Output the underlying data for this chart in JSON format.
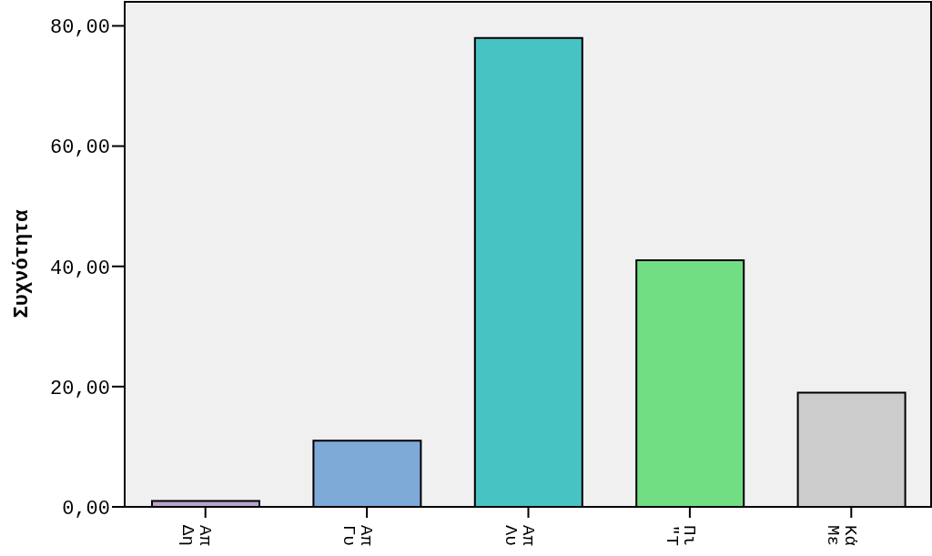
{
  "chart_data": {
    "type": "bar",
    "ylabel": "Συχνότητα",
    "categories": [
      "Απ\nΔη",
      "Απ\nΓυ",
      "Απ\nΛυ",
      "Πι\n\"Τ",
      "Κά\nΜε"
    ],
    "values": [
      1,
      11,
      78,
      41,
      19
    ],
    "colors": [
      "#b8a3cb",
      "#7eaad8",
      "#48c3c3",
      "#72de84",
      "#cccccc"
    ],
    "ylim": [
      0,
      84
    ],
    "yticks": [
      {
        "value": 0,
        "label": "0,00"
      },
      {
        "value": 20,
        "label": "20,00"
      },
      {
        "value": 40,
        "label": "40,00"
      },
      {
        "value": 60,
        "label": "60,00"
      },
      {
        "value": 80,
        "label": "80,00"
      }
    ]
  }
}
